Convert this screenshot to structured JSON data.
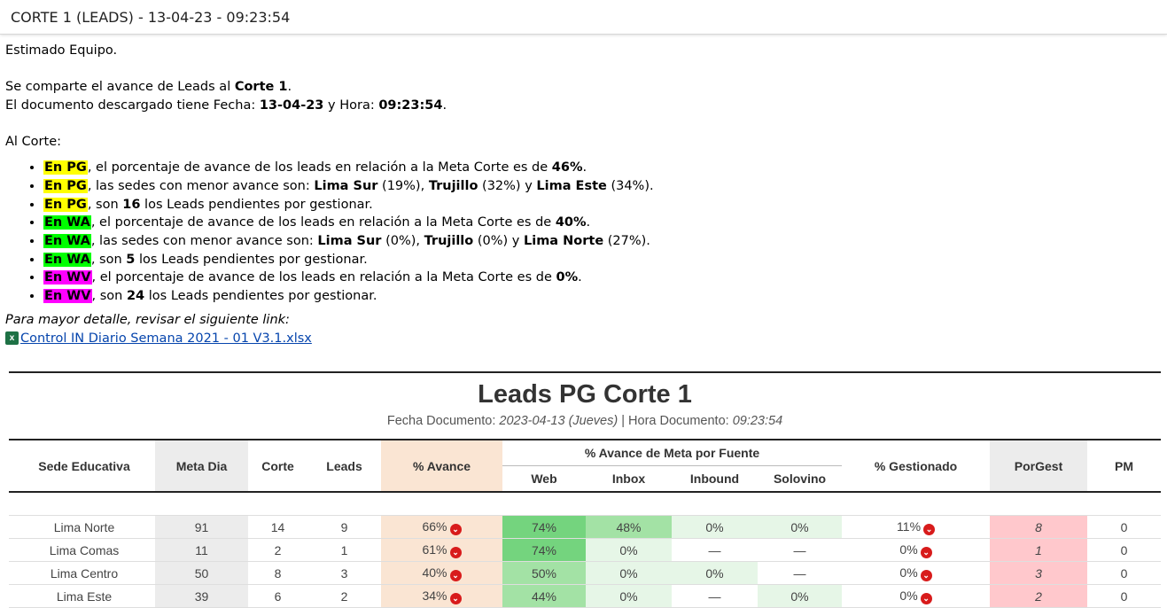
{
  "subject": "CORTE 1 (LEADS) - 13-04-23 - 09:23:54",
  "body": {
    "greeting": "Estimado Equipo.",
    "line1_pre": "Se comparte el avance de Leads al ",
    "line1_bold": "Corte 1",
    "line1_post": ".",
    "line2_pre": "El documento descargado tiene Fecha: ",
    "line2_date": "13-04-23",
    "line2_mid": " y Hora: ",
    "line2_time": "09:23:54",
    "line2_post": ".",
    "al_corte": "Al Corte:",
    "bullets": [
      {
        "tag": "En PG",
        "color": "#ffff00",
        "t1": ", el porcentaje de avance de los leads en relación a la Meta Corte es de ",
        "b1": "46%",
        "t2": ".",
        "b2": "",
        "t3": "",
        "b3": "",
        "t4": "",
        "b4": "",
        "t5": ""
      },
      {
        "tag": "En PG",
        "color": "#ffff00",
        "t1": ", las sedes con menor avance son: ",
        "b1": "Lima Sur",
        "t2": " (19%), ",
        "b2": "Trujillo",
        "t3": " (32%) y ",
        "b3": "Lima Este",
        "t4": " (34%).",
        "b4": "",
        "t5": ""
      },
      {
        "tag": "En PG",
        "color": "#ffff00",
        "t1": ", son ",
        "b1": "16",
        "t2": " los Leads pendientes por gestionar.",
        "b2": "",
        "t3": "",
        "b3": "",
        "t4": "",
        "b4": "",
        "t5": ""
      },
      {
        "tag": "En WA",
        "color": "#00ff00",
        "t1": ", el porcentaje de avance de los leads en relación a la Meta Corte es de ",
        "b1": "40%",
        "t2": ".",
        "b2": "",
        "t3": "",
        "b3": "",
        "t4": "",
        "b4": "",
        "t5": ""
      },
      {
        "tag": "En WA",
        "color": "#00ff00",
        "t1": ", las sedes con menor avance son: ",
        "b1": "Lima Sur",
        "t2": " (0%), ",
        "b2": "Trujillo",
        "t3": " (0%) y ",
        "b3": "Lima Norte",
        "t4": " (27%).",
        "b4": "",
        "t5": ""
      },
      {
        "tag": "En WA",
        "color": "#00ff00",
        "t1": ", son ",
        "b1": "5",
        "t2": " los Leads pendientes por gestionar.",
        "b2": "",
        "t3": "",
        "b3": "",
        "t4": "",
        "b4": "",
        "t5": ""
      },
      {
        "tag": "En WV",
        "color": "#ff00ff",
        "t1": ", el porcentaje de avance de los leads en relación a la Meta Corte es de ",
        "b1": "0%",
        "t2": ".",
        "b2": "",
        "t3": "",
        "b3": "",
        "t4": "",
        "b4": "",
        "t5": ""
      },
      {
        "tag": "En WV",
        "color": "#ff00ff",
        "t1": ", son ",
        "b1": "24",
        "t2": " los Leads pendientes por gestionar.",
        "b2": "",
        "t3": "",
        "b3": "",
        "t4": "",
        "b4": "",
        "t5": ""
      }
    ],
    "detail_note": "Para mayor detalle, revisar el siguiente link:",
    "attachment": {
      "icon": "excel-file-icon",
      "name": "Control IN Diario Semana 2021 - 01 V3.1.xlsx"
    }
  },
  "report": {
    "title": "Leads PG Corte 1",
    "sub_fecha_label": "Fecha Documento: ",
    "sub_fecha": "2023-04-13 (Jueves)",
    "sub_sep": " | Hora Documento: ",
    "sub_hora": "09:23:54",
    "headers": {
      "sede": "Sede Educativa",
      "meta_dia": "Meta Dia",
      "corte": "Corte",
      "leads": "Leads",
      "avance": "% Avance",
      "fuente_group": "% Avance de Meta por Fuente",
      "web": "Web",
      "inbox": "Inbox",
      "inbound": "Inbound",
      "solovino": "Solovino",
      "gestionado": "% Gestionado",
      "porgest": "PorGest",
      "pm": "PM"
    },
    "colors": {
      "gray_col": "#ececec",
      "orange_col": "#fae5d3",
      "porgest_col": "#ffc8cc",
      "warn_red": "#d81b1b",
      "web_strong": "#74d47e",
      "web_mid": "#a3e2a5",
      "pale_green": "#e6f6e7"
    },
    "rows": [
      {
        "sede": "Lima Norte",
        "meta": "91",
        "corte": "14",
        "leads": "9",
        "avance": "66%",
        "web": "74%",
        "web_c": "#74d47e",
        "inbox": "48%",
        "inbox_c": "#a3e2a5",
        "inbound": "0%",
        "inbound_c": "#e6f6e7",
        "solovino": "0%",
        "solovino_c": "#e6f6e7",
        "gest": "11%",
        "porgest": "8",
        "pm": "0"
      },
      {
        "sede": "Lima Comas",
        "meta": "11",
        "corte": "2",
        "leads": "1",
        "avance": "61%",
        "web": "74%",
        "web_c": "#74d47e",
        "inbox": "0%",
        "inbox_c": "#e6f6e7",
        "inbound": "—",
        "inbound_c": "#ffffff",
        "solovino": "—",
        "solovino_c": "#ffffff",
        "gest": "0%",
        "porgest": "1",
        "pm": "0"
      },
      {
        "sede": "Lima Centro",
        "meta": "50",
        "corte": "8",
        "leads": "3",
        "avance": "40%",
        "web": "50%",
        "web_c": "#a3e2a5",
        "inbox": "0%",
        "inbox_c": "#e6f6e7",
        "inbound": "0%",
        "inbound_c": "#e6f6e7",
        "solovino": "—",
        "solovino_c": "#ffffff",
        "gest": "0%",
        "porgest": "3",
        "pm": "0"
      },
      {
        "sede": "Lima Este",
        "meta": "39",
        "corte": "6",
        "leads": "2",
        "avance": "34%",
        "web": "44%",
        "web_c": "#a3e2a5",
        "inbox": "0%",
        "inbox_c": "#e6f6e7",
        "inbound": "—",
        "inbound_c": "#ffffff",
        "solovino": "0%",
        "solovino_c": "#e6f6e7",
        "gest": "0%",
        "porgest": "2",
        "pm": "0"
      }
    ]
  }
}
